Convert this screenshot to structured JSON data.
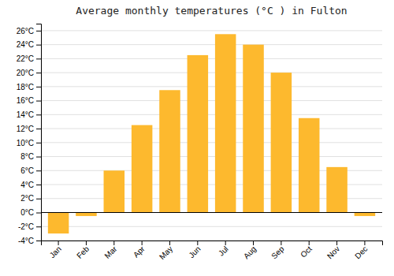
{
  "chart_data": {
    "type": "bar",
    "title": "Average monthly temperatures (°C ) in Fulton",
    "categories": [
      "Jan",
      "Feb",
      "Mar",
      "Apr",
      "May",
      "Jun",
      "Jul",
      "Aug",
      "Sep",
      "Oct",
      "Nov",
      "Dec"
    ],
    "values": [
      -3.0,
      -0.5,
      6.0,
      12.5,
      17.5,
      22.5,
      25.5,
      24.0,
      20.0,
      13.5,
      6.5,
      -0.5
    ],
    "color": "#FDB92E",
    "ylim": [
      -4,
      27
    ],
    "yticks": [
      {
        "value": -4,
        "label": "-4°C"
      },
      {
        "value": -2,
        "label": "-2°C"
      },
      {
        "value": 0,
        "label": "0°C"
      },
      {
        "value": 2,
        "label": "2°C"
      },
      {
        "value": 4,
        "label": "4°C"
      },
      {
        "value": 6,
        "label": "6°C"
      },
      {
        "value": 8,
        "label": "8°C"
      },
      {
        "value": 10,
        "label": "10°C"
      },
      {
        "value": 12,
        "label": "12°C"
      },
      {
        "value": 14,
        "label": "14°C"
      },
      {
        "value": 16,
        "label": "16°C"
      },
      {
        "value": 18,
        "label": "18°C"
      },
      {
        "value": 20,
        "label": "20°C"
      },
      {
        "value": 22,
        "label": "22°C"
      },
      {
        "value": 24,
        "label": "24°C"
      },
      {
        "value": 26,
        "label": "26°C"
      }
    ],
    "grid": true
  }
}
